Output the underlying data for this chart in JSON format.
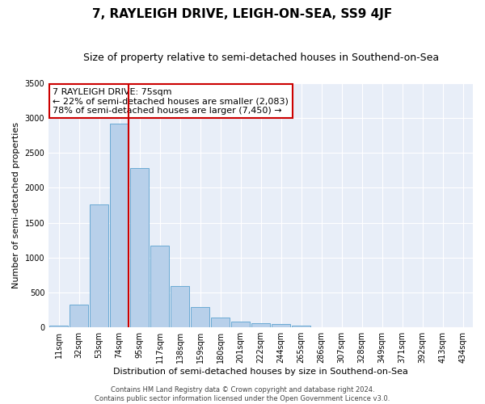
{
  "title": "7, RAYLEIGH DRIVE, LEIGH-ON-SEA, SS9 4JF",
  "subtitle": "Size of property relative to semi-detached houses in Southend-on-Sea",
  "xlabel": "Distribution of semi-detached houses by size in Southend-on-Sea",
  "ylabel": "Number of semi-detached properties",
  "categories": [
    "11sqm",
    "32sqm",
    "53sqm",
    "74sqm",
    "95sqm",
    "117sqm",
    "138sqm",
    "159sqm",
    "180sqm",
    "201sqm",
    "222sqm",
    "244sqm",
    "265sqm",
    "286sqm",
    "307sqm",
    "328sqm",
    "349sqm",
    "371sqm",
    "392sqm",
    "413sqm",
    "434sqm"
  ],
  "values": [
    25,
    330,
    1760,
    2920,
    2280,
    1170,
    590,
    295,
    140,
    80,
    55,
    45,
    25,
    0,
    0,
    0,
    0,
    0,
    0,
    0,
    0
  ],
  "bar_color": "#b8d0ea",
  "bar_edge_color": "#6aaad4",
  "vline_color": "#cc0000",
  "ylim": [
    0,
    3500
  ],
  "yticks": [
    0,
    500,
    1000,
    1500,
    2000,
    2500,
    3000,
    3500
  ],
  "annotation_line1": "7 RAYLEIGH DRIVE: 75sqm",
  "annotation_line2": "← 22% of semi-detached houses are smaller (2,083)",
  "annotation_line3": "78% of semi-detached houses are larger (7,450) →",
  "annotation_box_color": "#ffffff",
  "annotation_box_edge": "#cc0000",
  "background_color": "#e8eef8",
  "footer_line1": "Contains HM Land Registry data © Crown copyright and database right 2024.",
  "footer_line2": "Contains public sector information licensed under the Open Government Licence v3.0.",
  "title_fontsize": 11,
  "subtitle_fontsize": 9,
  "axis_label_fontsize": 8,
  "tick_fontsize": 7,
  "annotation_fontsize": 8,
  "footer_fontsize": 6
}
